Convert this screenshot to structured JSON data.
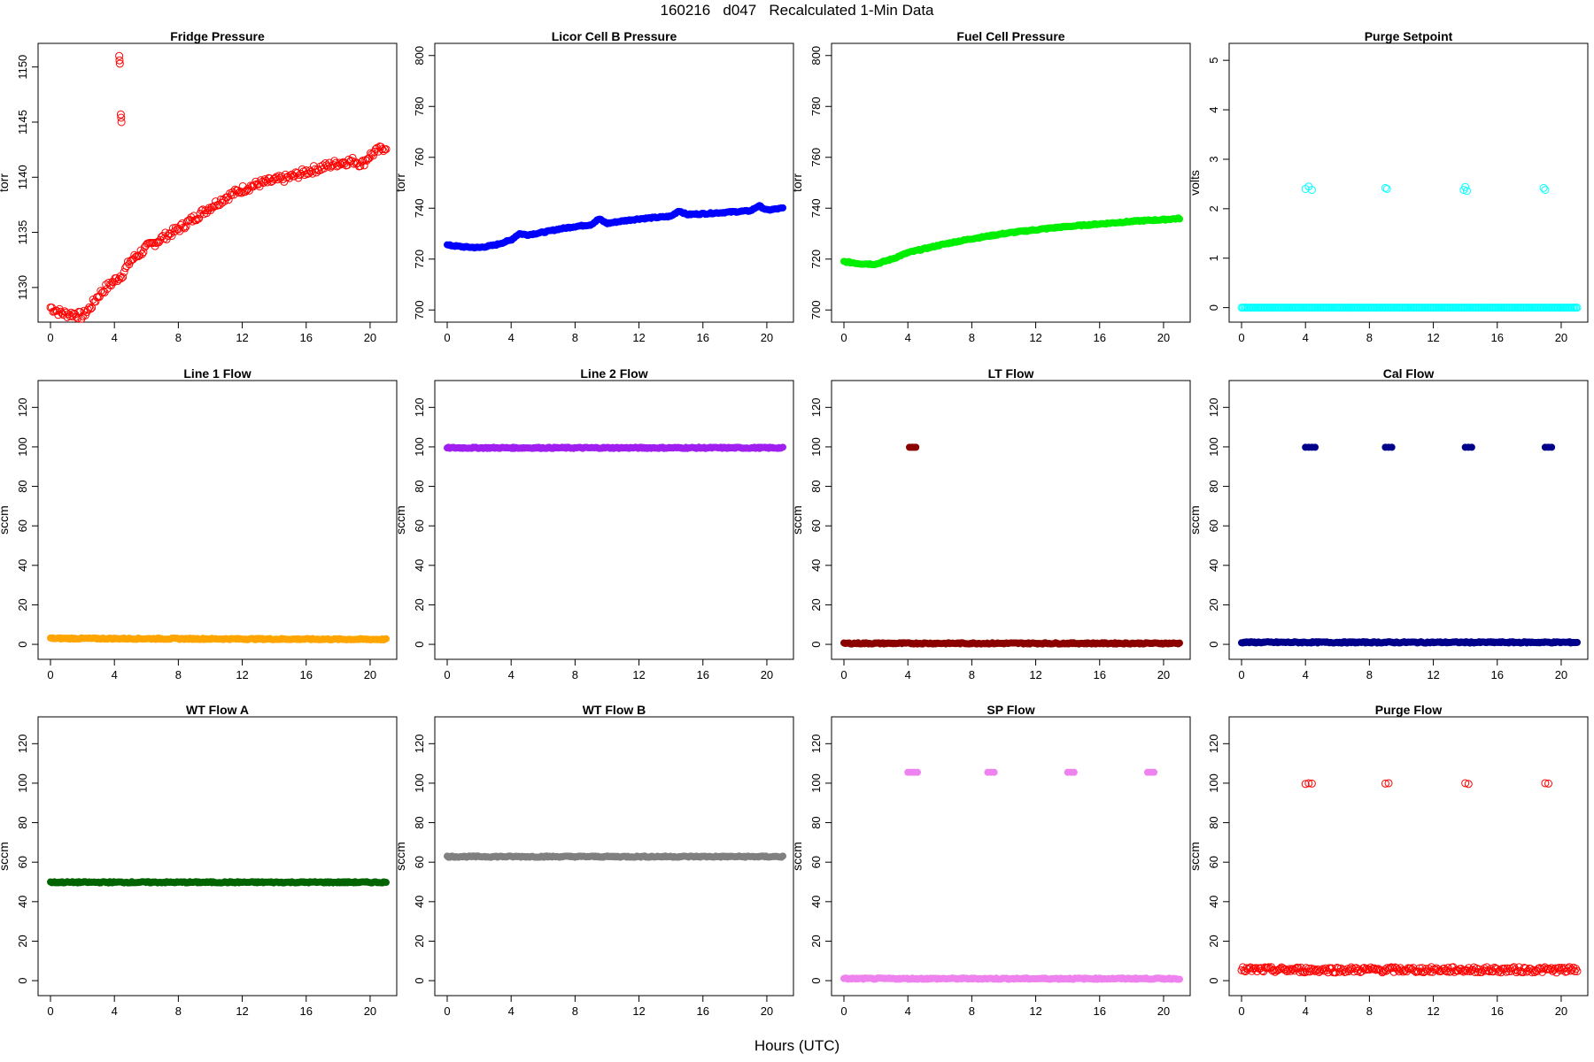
{
  "page": {
    "title": "160216   d047   Recalculated 1-Min Data",
    "xlabel": "Hours (UTC)"
  },
  "chart_data": [
    {
      "type": "scatter",
      "title": "Fridge Pressure",
      "ylabel": "torr",
      "xlabel": "",
      "color": "#ff0000",
      "marker": "open-circle",
      "xlim": [
        0,
        21
      ],
      "xticks": [
        0,
        4,
        8,
        12,
        16,
        20
      ],
      "ylim": [
        1127.5,
        1151.5
      ],
      "yticks": [
        1130,
        1135,
        1140,
        1145,
        1150
      ],
      "series": [
        {
          "x": [
            0,
            0.5,
            1,
            1.5,
            2,
            2.5,
            3,
            3.5,
            4,
            4.5,
            5,
            5.5,
            6,
            7,
            8,
            9,
            10,
            11,
            12,
            13,
            14,
            15,
            16,
            17,
            18,
            19,
            19.5,
            20,
            21
          ],
          "y": [
            1128.2,
            1127.8,
            1127.6,
            1127.6,
            1127.4,
            1128.2,
            1129.3,
            1130,
            1130.6,
            1131.2,
            1132.4,
            1133,
            1133.6,
            1134.5,
            1135.3,
            1136.3,
            1137.3,
            1138.2,
            1138.9,
            1139.4,
            1139.7,
            1140,
            1140.5,
            1140.9,
            1141.3,
            1141.5,
            1141.2,
            1142,
            1142.8
          ]
        }
      ],
      "outliers": {
        "x": [
          4.3,
          4.32,
          4.34,
          4.4,
          4.42,
          4.44
        ],
        "y": [
          1151,
          1150.6,
          1150.3,
          1145.7,
          1145.4,
          1145
        ]
      }
    },
    {
      "type": "scatter",
      "title": "Licor Cell B Pressure",
      "ylabel": "torr",
      "xlabel": "",
      "color": "#0000ff",
      "marker": "filled-circle",
      "xlim": [
        0,
        21
      ],
      "xticks": [
        0,
        4,
        8,
        12,
        16,
        20
      ],
      "ylim": [
        698,
        802
      ],
      "yticks": [
        700,
        720,
        740,
        760,
        780,
        800
      ],
      "series": [
        {
          "x": [
            0,
            1,
            2,
            3,
            4,
            4.5,
            5,
            6,
            7,
            8,
            9,
            9.5,
            10,
            11,
            12,
            13,
            14,
            14.5,
            15,
            16,
            17,
            18,
            19,
            19.5,
            20,
            21
          ],
          "y": [
            725.5,
            724.8,
            724.5,
            725.5,
            727.5,
            730,
            729.5,
            730.5,
            731.8,
            732.8,
            733.5,
            735.8,
            734,
            735,
            735.8,
            736.3,
            736.8,
            739,
            737.5,
            737.8,
            738.2,
            738.6,
            739,
            741,
            739.2,
            740
          ]
        }
      ],
      "outliers": {
        "x": [],
        "y": []
      }
    },
    {
      "type": "scatter",
      "title": "Fuel Cell Pressure",
      "ylabel": "torr",
      "xlabel": "",
      "color": "#00ee00",
      "marker": "filled-circle",
      "xlim": [
        0,
        21
      ],
      "xticks": [
        0,
        4,
        8,
        12,
        16,
        20
      ],
      "ylim": [
        698,
        802
      ],
      "yticks": [
        700,
        720,
        740,
        760,
        780,
        800
      ],
      "series": [
        {
          "x": [
            0,
            1,
            2,
            3,
            4,
            5,
            6,
            7,
            8,
            9,
            10,
            11,
            12,
            13,
            14,
            15,
            16,
            17,
            18,
            19,
            20,
            21
          ],
          "y": [
            719,
            718.2,
            718,
            720,
            722.5,
            724,
            725.5,
            726.8,
            728,
            729,
            730,
            730.8,
            731.5,
            732.2,
            732.8,
            733.3,
            733.8,
            734.3,
            734.8,
            735.2,
            735.5,
            736
          ]
        }
      ],
      "outliers": {
        "x": [],
        "y": []
      }
    },
    {
      "type": "scatter",
      "title": "Purge Setpoint",
      "ylabel": "volts",
      "xlabel": "",
      "color": "#00ffff",
      "marker": "open-circle",
      "xlim": [
        0,
        21
      ],
      "xticks": [
        0,
        4,
        8,
        12,
        16,
        20
      ],
      "ylim": [
        -0.15,
        5.2
      ],
      "yticks": [
        0,
        1,
        2,
        3,
        4,
        5
      ],
      "series": [
        {
          "x": [
            0,
            21
          ],
          "y": [
            0,
            0
          ]
        }
      ],
      "outliers": {
        "x": [
          4.0,
          4.2,
          4.4,
          9.0,
          9.1,
          13.9,
          14.0,
          14.1,
          18.9,
          19.0
        ],
        "y": [
          2.4,
          2.45,
          2.38,
          2.42,
          2.4,
          2.38,
          2.44,
          2.36,
          2.42,
          2.38
        ]
      }
    },
    {
      "type": "scatter",
      "title": "Line 1 Flow",
      "ylabel": "sccm",
      "xlabel": "",
      "color": "#ffa500",
      "marker": "filled-circle",
      "xlim": [
        0,
        21
      ],
      "xticks": [
        0,
        4,
        8,
        12,
        16,
        20
      ],
      "ylim": [
        -4,
        130
      ],
      "yticks": [
        0,
        20,
        40,
        60,
        80,
        100,
        120
      ],
      "series": [
        {
          "x": [
            0,
            21
          ],
          "y": [
            3,
            2.5
          ]
        }
      ],
      "outliers": {
        "x": [],
        "y": []
      }
    },
    {
      "type": "scatter",
      "title": "Line 2 Flow",
      "ylabel": "sccm",
      "xlabel": "",
      "color": "#a020f0",
      "marker": "filled-circle",
      "xlim": [
        0,
        21
      ],
      "xticks": [
        0,
        4,
        8,
        12,
        16,
        20
      ],
      "ylim": [
        -4,
        130
      ],
      "yticks": [
        0,
        20,
        40,
        60,
        80,
        100,
        120
      ],
      "series": [
        {
          "x": [
            0,
            21
          ],
          "y": [
            99.5,
            99.5
          ]
        }
      ],
      "outliers": {
        "x": [],
        "y": []
      }
    },
    {
      "type": "scatter",
      "title": "LT Flow",
      "ylabel": "sccm",
      "xlabel": "",
      "color": "#8b0000",
      "marker": "filled-circle",
      "xlim": [
        0,
        21
      ],
      "xticks": [
        0,
        4,
        8,
        12,
        16,
        20
      ],
      "ylim": [
        -4,
        130
      ],
      "yticks": [
        0,
        20,
        40,
        60,
        80,
        100,
        120
      ],
      "series": [
        {
          "x": [
            0,
            21
          ],
          "y": [
            0.5,
            0.5
          ]
        }
      ],
      "outliers": {
        "x": [
          4.1,
          4.2,
          4.3,
          4.4,
          4.5
        ],
        "y": [
          99.8,
          99.8,
          99.8,
          99.8,
          99.8
        ]
      }
    },
    {
      "type": "scatter",
      "title": "Cal Flow",
      "ylabel": "sccm",
      "xlabel": "",
      "color": "#00008b",
      "marker": "filled-circle",
      "xlim": [
        0,
        21
      ],
      "xticks": [
        0,
        4,
        8,
        12,
        16,
        20
      ],
      "ylim": [
        -4,
        130
      ],
      "yticks": [
        0,
        20,
        40,
        60,
        80,
        100,
        120
      ],
      "series": [
        {
          "x": [
            0,
            21
          ],
          "y": [
            1,
            1
          ]
        }
      ],
      "outliers": {
        "x": [
          4.0,
          4.2,
          4.4,
          4.6,
          9.0,
          9.2,
          9.4,
          14.0,
          14.2,
          14.4,
          19.0,
          19.2,
          19.4
        ],
        "y": [
          99.8,
          99.8,
          99.8,
          99.8,
          99.8,
          99.8,
          99.8,
          99.8,
          99.8,
          99.8,
          99.8,
          99.8,
          99.8
        ]
      }
    },
    {
      "type": "scatter",
      "title": "WT Flow A",
      "ylabel": "sccm",
      "xlabel": "",
      "color": "#006400",
      "marker": "filled-circle",
      "xlim": [
        0,
        21
      ],
      "xticks": [
        0,
        4,
        8,
        12,
        16,
        20
      ],
      "ylim": [
        -4,
        130
      ],
      "yticks": [
        0,
        20,
        40,
        60,
        80,
        100,
        120
      ],
      "series": [
        {
          "x": [
            0,
            21
          ],
          "y": [
            49.8,
            49.8
          ]
        }
      ],
      "outliers": {
        "x": [],
        "y": []
      }
    },
    {
      "type": "scatter",
      "title": "WT Flow B",
      "ylabel": "sccm",
      "xlabel": "",
      "color": "#808080",
      "marker": "filled-circle",
      "xlim": [
        0,
        21
      ],
      "xticks": [
        0,
        4,
        8,
        12,
        16,
        20
      ],
      "ylim": [
        -4,
        130
      ],
      "yticks": [
        0,
        20,
        40,
        60,
        80,
        100,
        120
      ],
      "series": [
        {
          "x": [
            0,
            21
          ],
          "y": [
            62.8,
            62.8
          ]
        }
      ],
      "outliers": {
        "x": [],
        "y": []
      }
    },
    {
      "type": "scatter",
      "title": "SP Flow",
      "ylabel": "sccm",
      "xlabel": "",
      "color": "#ee82ee",
      "marker": "filled-circle",
      "xlim": [
        0,
        21
      ],
      "xticks": [
        0,
        4,
        8,
        12,
        16,
        20
      ],
      "ylim": [
        -4,
        130
      ],
      "yticks": [
        0,
        20,
        40,
        60,
        80,
        100,
        120
      ],
      "series": [
        {
          "x": [
            0,
            21
          ],
          "y": [
            1,
            1
          ]
        }
      ],
      "outliers": {
        "x": [
          4.0,
          4.2,
          4.4,
          4.6,
          9.0,
          9.2,
          9.4,
          14.0,
          14.2,
          14.4,
          19.0,
          19.2,
          19.4
        ],
        "y": [
          105.5,
          105.5,
          105.5,
          105.5,
          105.5,
          105.5,
          105.5,
          105.5,
          105.5,
          105.5,
          105.5,
          105.5,
          105.5
        ]
      }
    },
    {
      "type": "scatter",
      "title": "Purge Flow",
      "ylabel": "sccm",
      "xlabel": "",
      "color": "#ff0000",
      "marker": "open-circle",
      "xlim": [
        0,
        21
      ],
      "xticks": [
        0,
        4,
        8,
        12,
        16,
        20
      ],
      "ylim": [
        -4,
        130
      ],
      "yticks": [
        0,
        20,
        40,
        60,
        80,
        100,
        120
      ],
      "series": [
        {
          "x": [
            0,
            21
          ],
          "y": [
            5.5,
            5.5
          ]
        }
      ],
      "outliers": {
        "x": [
          4.0,
          4.2,
          4.4,
          9.0,
          9.2,
          14.0,
          14.2,
          19.0,
          19.2
        ],
        "y": [
          99.6,
          100,
          99.8,
          99.8,
          100,
          100,
          99.6,
          100,
          99.8
        ]
      }
    }
  ]
}
